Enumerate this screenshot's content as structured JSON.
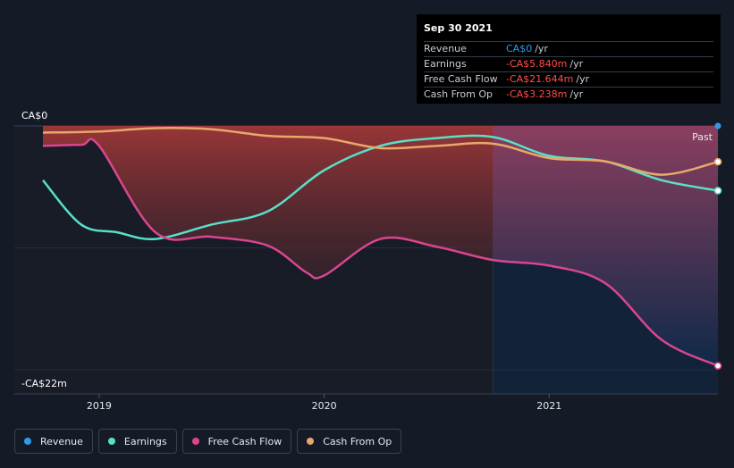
{
  "tooltip": {
    "date": "Sep 30 2021",
    "rows": [
      {
        "label": "Revenue",
        "value": "CA$0",
        "unit": "/yr",
        "color": "#2f9be6"
      },
      {
        "label": "Earnings",
        "value": "-CA$5.840m",
        "unit": "/yr",
        "color": "#ff4d4d"
      },
      {
        "label": "Free Cash Flow",
        "value": "-CA$21.644m",
        "unit": "/yr",
        "color": "#ff4d4d"
      },
      {
        "label": "Cash From Op",
        "value": "-CA$3.238m",
        "unit": "/yr",
        "color": "#ff4d4d"
      }
    ]
  },
  "axis": {
    "top_label": "CA$0",
    "bottom_label": "-CA$22m",
    "past_label": "Past"
  },
  "legend": [
    {
      "name": "Revenue",
      "color": "#2f9be6"
    },
    {
      "name": "Earnings",
      "color": "#58e0c8"
    },
    {
      "name": "Free Cash Flow",
      "color": "#d9468f"
    },
    {
      "name": "Cash From Op",
      "color": "#e8a86a"
    }
  ],
  "chart_data": {
    "type": "line",
    "x_tick_labels": [
      "2019",
      "2020",
      "2021"
    ],
    "ylim": [
      -22,
      0
    ],
    "y_unit": "CA$m",
    "series": [
      {
        "name": "Revenue",
        "color": "#2f9be6",
        "points": [
          [
            2021.75,
            0
          ]
        ]
      },
      {
        "name": "Earnings",
        "color": "#58e0c8",
        "points": [
          [
            2018.75,
            -4.9
          ],
          [
            2018.92,
            -8.9
          ],
          [
            2019.08,
            -9.6
          ],
          [
            2019.25,
            -10.2
          ],
          [
            2019.5,
            -8.9
          ],
          [
            2019.75,
            -7.7
          ],
          [
            2020.0,
            -4.0
          ],
          [
            2020.25,
            -1.8
          ],
          [
            2020.5,
            -1.1
          ],
          [
            2020.75,
            -1.0
          ],
          [
            2021.0,
            -2.7
          ],
          [
            2021.25,
            -3.2
          ],
          [
            2021.5,
            -4.9
          ],
          [
            2021.75,
            -5.84
          ]
        ]
      },
      {
        "name": "Free Cash Flow",
        "color": "#d9468f",
        "points": [
          [
            2018.75,
            -1.8
          ],
          [
            2018.92,
            -1.7
          ],
          [
            2019.0,
            -1.8
          ],
          [
            2019.25,
            -9.6
          ],
          [
            2019.5,
            -10.0
          ],
          [
            2019.75,
            -10.8
          ],
          [
            2019.92,
            -13.2
          ],
          [
            2020.0,
            -13.5
          ],
          [
            2020.25,
            -10.2
          ],
          [
            2020.5,
            -10.9
          ],
          [
            2020.75,
            -12.1
          ],
          [
            2021.0,
            -12.6
          ],
          [
            2021.25,
            -14.2
          ],
          [
            2021.5,
            -19.3
          ],
          [
            2021.75,
            -21.644
          ]
        ]
      },
      {
        "name": "Cash From Op",
        "color": "#e8a86a",
        "points": [
          [
            2018.75,
            -0.6
          ],
          [
            2019.0,
            -0.5
          ],
          [
            2019.25,
            -0.2
          ],
          [
            2019.5,
            -0.3
          ],
          [
            2019.75,
            -0.9
          ],
          [
            2020.0,
            -1.1
          ],
          [
            2020.25,
            -2.0
          ],
          [
            2020.5,
            -1.8
          ],
          [
            2020.75,
            -1.6
          ],
          [
            2021.0,
            -2.9
          ],
          [
            2021.25,
            -3.2
          ],
          [
            2021.5,
            -4.4
          ],
          [
            2021.75,
            -3.238
          ]
        ]
      }
    ],
    "legend_position": "bottom-left",
    "grid": true
  }
}
